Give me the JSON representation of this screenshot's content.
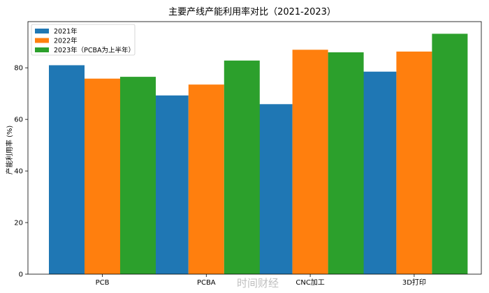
{
  "chart_data": {
    "type": "bar",
    "title": "主要产线产能利用率对比（2021-2023）",
    "xlabel": "",
    "ylabel": "产能利用率 (%)",
    "categories": [
      "PCB",
      "PCBA",
      "CNC加工",
      "3D打印"
    ],
    "series": [
      {
        "name": "2021年",
        "color": "#1f77b4",
        "values": [
          81.0,
          69.3,
          65.9,
          78.5
        ]
      },
      {
        "name": "2022年",
        "color": "#ff7f0e",
        "values": [
          75.8,
          73.5,
          87.0,
          86.3
        ]
      },
      {
        "name": "2023年（PCBA为上半年）",
        "color": "#2ca02c",
        "values": [
          76.5,
          82.8,
          86.0,
          93.2
        ]
      }
    ],
    "ylim": [
      0,
      97.9
    ],
    "yticks": [
      0,
      20,
      40,
      60,
      80
    ],
    "grid": false,
    "legend_position": "top-left"
  },
  "watermark": "时间财经"
}
